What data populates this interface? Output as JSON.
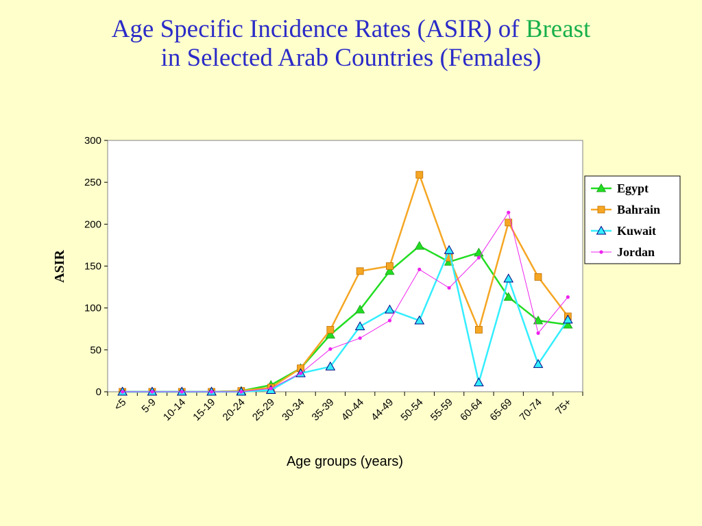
{
  "slide": {
    "title_line1": "Age Specific Incidence Rates (ASIR) of ",
    "title_highlight": "Breast",
    "title_line2": "in Selected Arab Countries (Females)",
    "title_color": "#2b2bc8",
    "highlight_color": "#18b04a",
    "background": "#ffffcc"
  },
  "chart_data": {
    "type": "line",
    "title": "",
    "xlabel": "Age groups (years)",
    "ylabel": "ASIR",
    "ylim": [
      0,
      300
    ],
    "yticks": [
      0,
      50,
      100,
      150,
      200,
      250,
      300
    ],
    "grid": false,
    "legend_position": "right",
    "categories": [
      "<5",
      "5-9",
      "10-14",
      "15-19",
      "20-24",
      "25-29",
      "30-34",
      "35-39",
      "40-44",
      "44-49",
      "50-54",
      "55-59",
      "60-64",
      "65-69",
      "70-74",
      "75+"
    ],
    "series": [
      {
        "name": "Egypt",
        "color": "#22dd22",
        "marker": "triangle-filled",
        "values": [
          0,
          0,
          0,
          0,
          1,
          8,
          28,
          68,
          98,
          144,
          174,
          155,
          166,
          113,
          85,
          80
        ]
      },
      {
        "name": "Bahrain",
        "color": "#f5a623",
        "marker": "square",
        "values": [
          0,
          0,
          0,
          0,
          1,
          5,
          28,
          74,
          144,
          150,
          259,
          160,
          74,
          202,
          137,
          90
        ]
      },
      {
        "name": "Kuwait",
        "color": "#33eeff",
        "marker": "triangle-open",
        "values": [
          0,
          0,
          0,
          0,
          0,
          2,
          22,
          30,
          78,
          98,
          85,
          169,
          11,
          135,
          33,
          86
        ]
      },
      {
        "name": "Jordan",
        "color": "#ee22ee",
        "marker": "dot",
        "values": [
          0,
          0,
          0,
          0,
          0,
          4,
          22,
          51,
          64,
          85,
          146,
          124,
          160,
          214,
          70,
          113
        ]
      }
    ]
  }
}
